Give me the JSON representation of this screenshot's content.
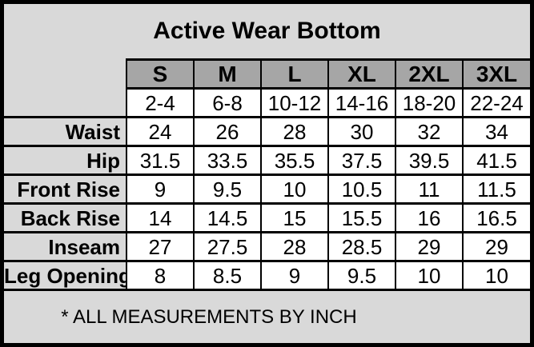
{
  "title": "Active Wear Bottom",
  "footer_note": "* ALL MEASUREMENTS BY INCH",
  "colors": {
    "background": "#d9d9d9",
    "size_header_bg": "#a6a6a6",
    "cell_bg": "#ffffff",
    "border": "#000000",
    "text": "#000000"
  },
  "table": {
    "size_headers": [
      "S",
      "M",
      "L",
      "XL",
      "2XL",
      "3XL"
    ],
    "numeric_sizes": [
      "2-4",
      "6-8",
      "10-12",
      "14-16",
      "18-20",
      "22-24"
    ],
    "rows": [
      {
        "label": "Waist",
        "values": [
          "24",
          "26",
          "28",
          "30",
          "32",
          "34"
        ]
      },
      {
        "label": "Hip",
        "values": [
          "31.5",
          "33.5",
          "35.5",
          "37.5",
          "39.5",
          "41.5"
        ]
      },
      {
        "label": "Front Rise",
        "values": [
          "9",
          "9.5",
          "10",
          "10.5",
          "11",
          "11.5"
        ]
      },
      {
        "label": "Back Rise",
        "values": [
          "14",
          "14.5",
          "15",
          "15.5",
          "16",
          "16.5"
        ]
      },
      {
        "label": "Inseam",
        "values": [
          "27",
          "27.5",
          "28",
          "28.5",
          "29",
          "29"
        ]
      },
      {
        "label": "Leg Opening",
        "values": [
          "8",
          "8.5",
          "9",
          "9.5",
          "10",
          "10"
        ]
      }
    ]
  },
  "chart_data": {
    "type": "table",
    "title": "Active Wear Bottom",
    "columns": [
      "",
      "S",
      "M",
      "L",
      "XL",
      "2XL",
      "3XL"
    ],
    "rows": [
      [
        "",
        "2-4",
        "6-8",
        "10-12",
        "14-16",
        "18-20",
        "22-24"
      ],
      [
        "Waist",
        24,
        26,
        28,
        30,
        32,
        34
      ],
      [
        "Hip",
        31.5,
        33.5,
        35.5,
        37.5,
        39.5,
        41.5
      ],
      [
        "Front Rise",
        9,
        9.5,
        10,
        10.5,
        11,
        11.5
      ],
      [
        "Back Rise",
        14,
        14.5,
        15,
        15.5,
        16,
        16.5
      ],
      [
        "Inseam",
        27,
        27.5,
        28,
        28.5,
        29,
        29
      ],
      [
        "Leg Opening",
        8,
        8.5,
        9,
        9.5,
        10,
        10
      ]
    ],
    "footnote": "* ALL MEASUREMENTS BY INCH",
    "units": "inches"
  }
}
